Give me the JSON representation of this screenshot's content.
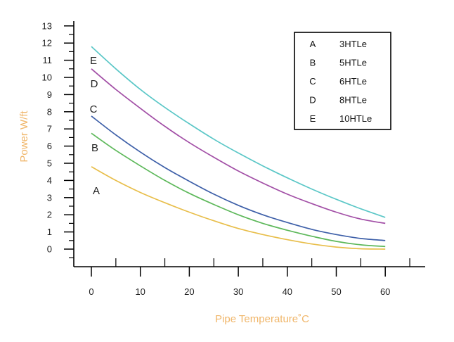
{
  "chart_data": {
    "type": "line",
    "title": "",
    "xlabel": "Pipe Temperature˚C",
    "ylabel": "Power W/ft",
    "axis_title_color": "#F0B66A",
    "xlim": [
      -3,
      68
    ],
    "ylim": [
      -1,
      13
    ],
    "xticks": [
      0,
      10,
      20,
      30,
      40,
      50,
      60
    ],
    "yticks": [
      0,
      1,
      2,
      3,
      4,
      5,
      6,
      7,
      8,
      9,
      10,
      11,
      12,
      13
    ],
    "grid": false,
    "legend_position": "top-right",
    "x": [
      0,
      5,
      10,
      15,
      20,
      25,
      30,
      35,
      40,
      45,
      50,
      55,
      60
    ],
    "series": [
      {
        "key": "A",
        "name": "3HTLe",
        "color": "#E8BE4A",
        "values": [
          4.8,
          4.0,
          3.3,
          2.7,
          2.15,
          1.65,
          1.2,
          0.85,
          0.55,
          0.3,
          0.12,
          0.02,
          0.0
        ]
      },
      {
        "key": "B",
        "name": "5HTLe",
        "color": "#5DB85A",
        "values": [
          6.75,
          5.75,
          4.85,
          4.0,
          3.25,
          2.6,
          2.0,
          1.5,
          1.1,
          0.75,
          0.45,
          0.25,
          0.15
        ]
      },
      {
        "key": "C",
        "name": "6HTLe",
        "color": "#3D5FA8",
        "values": [
          7.75,
          6.65,
          5.65,
          4.75,
          3.95,
          3.2,
          2.55,
          2.0,
          1.55,
          1.15,
          0.85,
          0.62,
          0.5
        ]
      },
      {
        "key": "D",
        "name": "8HTLe",
        "color": "#A24FA6",
        "values": [
          10.5,
          9.3,
          8.2,
          7.15,
          6.2,
          5.35,
          4.55,
          3.85,
          3.2,
          2.65,
          2.15,
          1.75,
          1.5
        ]
      },
      {
        "key": "E",
        "name": "10HTLe",
        "color": "#5BC7C7",
        "values": [
          11.8,
          10.5,
          9.3,
          8.25,
          7.3,
          6.4,
          5.6,
          4.85,
          4.15,
          3.5,
          2.9,
          2.35,
          1.85
        ]
      }
    ]
  }
}
